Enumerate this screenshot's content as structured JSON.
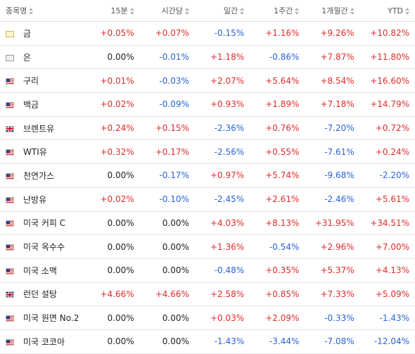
{
  "headers": [
    "종목명",
    "15분",
    "시간당",
    "일간",
    "1주간",
    "1개월간",
    "YTD"
  ],
  "rows": [
    {
      "name": "금",
      "flag": "commodity",
      "values": [
        "+0.05%",
        "+0.07%",
        "-0.15%",
        "+1.16%",
        "+9.26%",
        "+10.82%"
      ]
    },
    {
      "name": "은",
      "flag": "silver",
      "values": [
        "0.00%",
        "-0.01%",
        "+1.18%",
        "-0.86%",
        "+7.87%",
        "+11.80%"
      ]
    },
    {
      "name": "구리",
      "flag": "us",
      "values": [
        "+0.01%",
        "-0.03%",
        "+2.07%",
        "+5.64%",
        "+8.54%",
        "+16.60%"
      ]
    },
    {
      "name": "백금",
      "flag": "us",
      "values": [
        "+0.02%",
        "-0.09%",
        "+0.93%",
        "+1.89%",
        "+7.18%",
        "+14.79%"
      ]
    },
    {
      "name": "브렌트유",
      "flag": "uk",
      "values": [
        "+0.24%",
        "+0.15%",
        "-2.36%",
        "+0.76%",
        "-7.20%",
        "+0.72%"
      ]
    },
    {
      "name": "WTI유",
      "flag": "us",
      "values": [
        "+0.32%",
        "+0.17%",
        "-2.56%",
        "+0.55%",
        "-7.61%",
        "+0.24%"
      ]
    },
    {
      "name": "천연가스",
      "flag": "us",
      "values": [
        "0.00%",
        "-0.17%",
        "+0.97%",
        "+5.74%",
        "-9.68%",
        "-2.20%"
      ]
    },
    {
      "name": "난방유",
      "flag": "us",
      "values": [
        "+0.02%",
        "-0.10%",
        "-2.45%",
        "+2.61%",
        "-2.46%",
        "+5.61%"
      ]
    },
    {
      "name": "미국 커피 C",
      "flag": "us",
      "values": [
        "0.00%",
        "0.00%",
        "+4.03%",
        "+8.13%",
        "+31.95%",
        "+34.51%"
      ]
    },
    {
      "name": "미국 옥수수",
      "flag": "us",
      "values": [
        "0.00%",
        "0.00%",
        "+1.36%",
        "-0.54%",
        "+2.96%",
        "+7.00%"
      ]
    },
    {
      "name": "미국 소맥",
      "flag": "us",
      "values": [
        "0.00%",
        "0.00%",
        "-0.48%",
        "+0.35%",
        "+5.37%",
        "+4.13%"
      ]
    },
    {
      "name": "런던 설탕",
      "flag": "uk",
      "values": [
        "+4.66%",
        "+4.66%",
        "+2.58%",
        "+0.85%",
        "+7.33%",
        "+5.09%"
      ]
    },
    {
      "name": "미국 원면 No.2",
      "flag": "us",
      "values": [
        "0.00%",
        "0.00%",
        "+0.03%",
        "+2.09%",
        "-0.33%",
        "-1.43%"
      ]
    },
    {
      "name": "미국 코코아",
      "flag": "us",
      "values": [
        "0.00%",
        "0.00%",
        "-1.43%",
        "-3.44%",
        "-7.08%",
        "-12.04%"
      ]
    }
  ]
}
